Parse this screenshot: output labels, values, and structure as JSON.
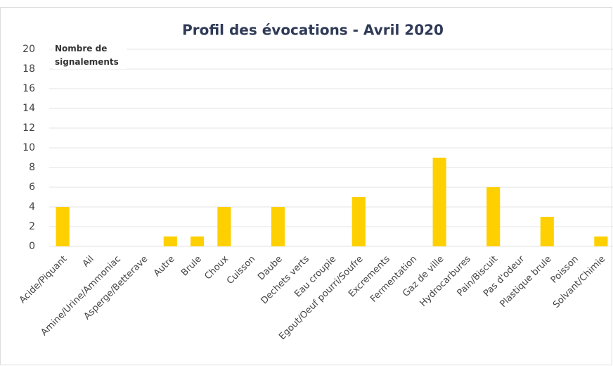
{
  "chart_data": {
    "type": "bar",
    "title": "Profil des évocations - Avril 2020",
    "y_label": "Nombre de signalements",
    "categories": [
      "Acide/Piquant",
      "Ail",
      "Amine/Urine/Ammoniac",
      "Asperge/Betterave",
      "Autre",
      "Brule",
      "Choux",
      "Cuisson",
      "Daube",
      "Dechets verts",
      "Eau croupie",
      "Egout/Oeuf pourri/Soufre",
      "Excrements",
      "Fermentation",
      "Gaz de ville",
      "Hydrocarbures",
      "Pain/Biscuit",
      "Pas d'odeur",
      "Plastique brule",
      "Poisson",
      "Solvant/Chimie"
    ],
    "values": [
      4,
      0,
      0,
      0,
      1,
      1,
      4,
      0,
      4,
      0,
      0,
      5,
      0,
      0,
      9,
      0,
      6,
      0,
      3,
      0,
      1
    ],
    "color": "#ffd000",
    "ylim": [
      0,
      20
    ],
    "yticks": [
      0,
      2,
      4,
      6,
      8,
      10,
      12,
      14,
      16,
      18,
      20
    ],
    "grid": true
  }
}
